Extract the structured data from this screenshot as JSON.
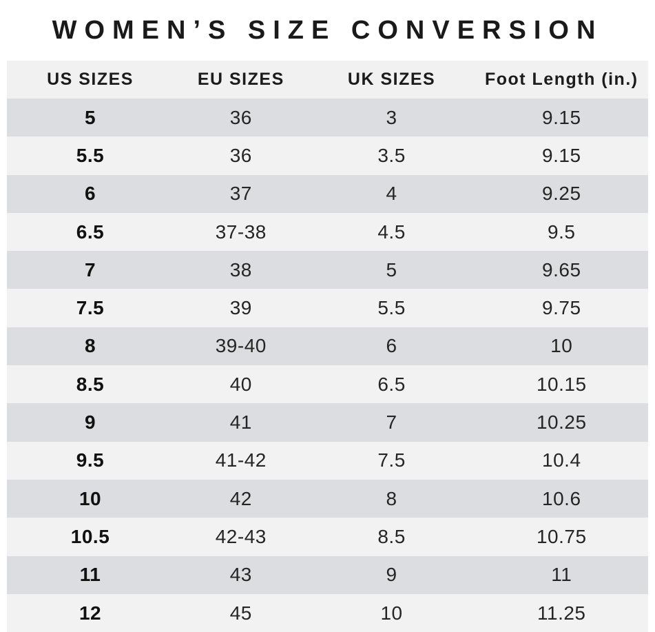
{
  "title": "WOMEN’S SIZE CONVERSION",
  "colors": {
    "row_dark": "#dcdde0",
    "row_light": "#f2f2f3",
    "header_bg": "#f1f1f1",
    "text": "#1a1a1a"
  },
  "chart_data": {
    "type": "table",
    "title": "WOMEN’S SIZE CONVERSION",
    "columns": [
      "US SIZES",
      "EU SIZES",
      "UK SIZES",
      "Foot Length (in.)"
    ],
    "rows": [
      [
        "5",
        "36",
        "3",
        "9.15"
      ],
      [
        "5.5",
        "36",
        "3.5",
        "9.15"
      ],
      [
        "6",
        "37",
        "4",
        "9.25"
      ],
      [
        "6.5",
        "37-38",
        "4.5",
        "9.5"
      ],
      [
        "7",
        "38",
        "5",
        "9.65"
      ],
      [
        "7.5",
        "39",
        "5.5",
        "9.75"
      ],
      [
        "8",
        "39-40",
        "6",
        "10"
      ],
      [
        "8.5",
        "40",
        "6.5",
        "10.15"
      ],
      [
        "9",
        "41",
        "7",
        "10.25"
      ],
      [
        "9.5",
        "41-42",
        "7.5",
        "10.4"
      ],
      [
        "10",
        "42",
        "8",
        "10.6"
      ],
      [
        "10.5",
        "42-43",
        "8.5",
        "10.75"
      ],
      [
        "11",
        "43",
        "9",
        "11"
      ],
      [
        "12",
        "45",
        "10",
        "11.25"
      ]
    ],
    "layout": {
      "zebra_striping": true,
      "first_data_row_shade": "dark",
      "bold_column": "US SIZES"
    }
  }
}
